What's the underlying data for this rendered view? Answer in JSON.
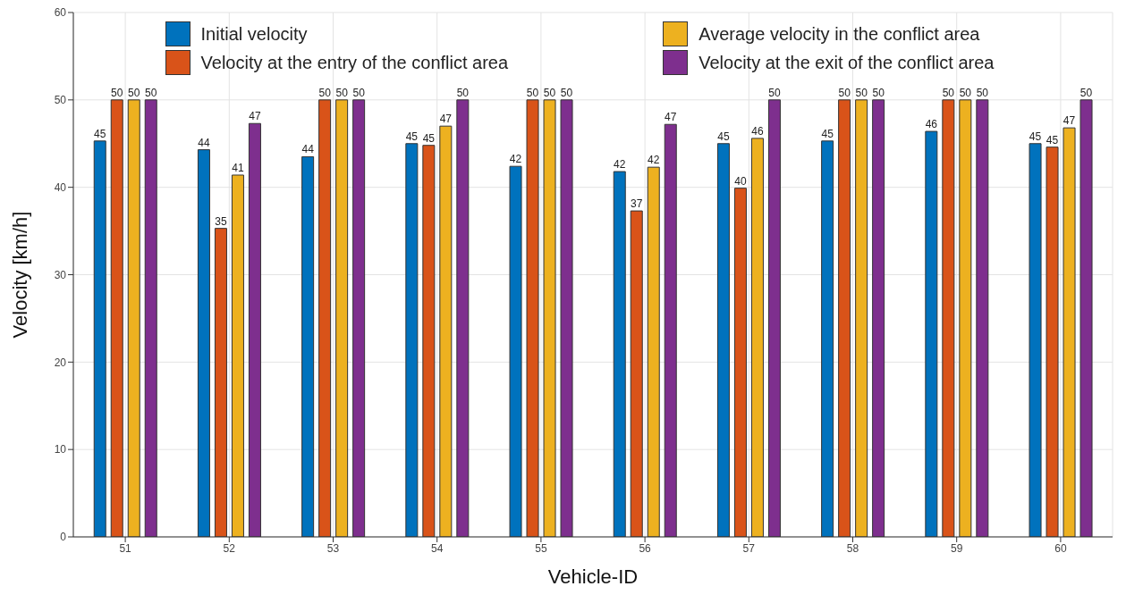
{
  "chart_data": {
    "type": "bar",
    "xlabel": "Vehicle-ID",
    "ylabel": "Velocity [km/h]",
    "categories": [
      "51",
      "52",
      "53",
      "54",
      "55",
      "56",
      "57",
      "58",
      "59",
      "60"
    ],
    "series": [
      {
        "name": "Initial velocity",
        "color": "#0072bd",
        "values": [
          45.3,
          44.3,
          43.5,
          45.0,
          42.4,
          41.8,
          45.0,
          45.3,
          46.4,
          45.0
        ],
        "value_labels": [
          "45",
          "44",
          "44",
          "45",
          "42",
          "42",
          "45",
          "45",
          "46",
          "45"
        ]
      },
      {
        "name": "Velocity at the entry of the conflict area",
        "color": "#d95319",
        "values": [
          50,
          35.3,
          50,
          44.8,
          50,
          37.3,
          39.9,
          50,
          50,
          44.6
        ],
        "value_labels": [
          "50",
          "35",
          "50",
          "45",
          "50",
          "37",
          "40",
          "50",
          "50",
          "45"
        ]
      },
      {
        "name": "Average velocity in the conflict area",
        "color": "#edb120",
        "values": [
          50,
          41.4,
          50,
          47.0,
          50,
          42.3,
          45.6,
          50,
          50,
          46.8
        ],
        "value_labels": [
          "50",
          "41",
          "50",
          "47",
          "50",
          "42",
          "46",
          "50",
          "50",
          "47"
        ]
      },
      {
        "name": "Velocity at the exit of the conflict area",
        "color": "#7e2f8e",
        "values": [
          50,
          47.3,
          50,
          50,
          50,
          47.2,
          50,
          50,
          50,
          50
        ],
        "value_labels": [
          "50",
          "47",
          "50",
          "50",
          "50",
          "47",
          "50",
          "50",
          "50",
          "50"
        ]
      }
    ],
    "ylim": [
      0,
      60
    ],
    "yticks": [
      0,
      10,
      20,
      30,
      40,
      50,
      60
    ],
    "grid": true,
    "legend": "top"
  }
}
